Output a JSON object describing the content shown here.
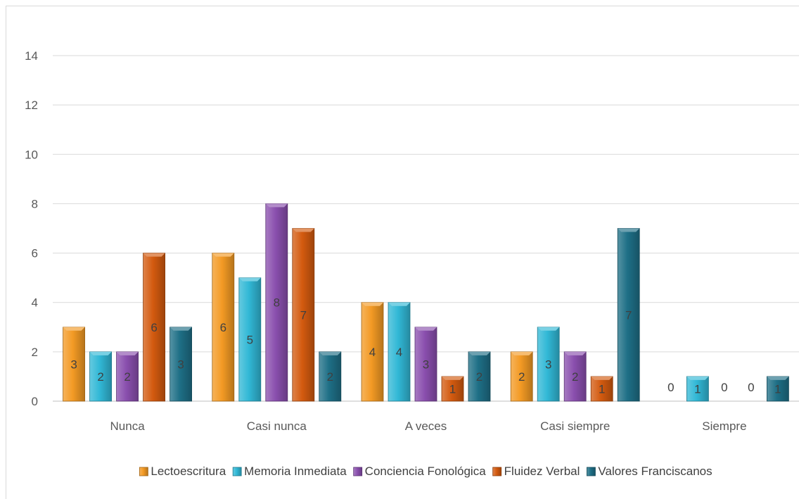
{
  "chart_data": {
    "type": "bar",
    "title": "",
    "xlabel": "",
    "ylabel": "",
    "categories": [
      "Nunca",
      "Casi nunca",
      "A veces",
      "Casi siempre",
      "Siempre"
    ],
    "ylim": [
      0,
      14
    ],
    "yticks": [
      0,
      2,
      4,
      6,
      8,
      10,
      12,
      14
    ],
    "grid": true,
    "legend_position": "bottom",
    "data_labels": true,
    "series": [
      {
        "name": "Lectoescritura",
        "color": "#f39a24",
        "values": [
          3,
          6,
          4,
          2,
          0
        ]
      },
      {
        "name": "Memoria Inmediata",
        "color": "#31b8d6",
        "values": [
          2,
          5,
          4,
          3,
          1
        ]
      },
      {
        "name": "Conciencia Fonológica",
        "color": "#8a4fae",
        "values": [
          2,
          8,
          3,
          2,
          0
        ]
      },
      {
        "name": "Fluidez Verbal",
        "color": "#d35a0f",
        "values": [
          6,
          7,
          1,
          1,
          0
        ]
      },
      {
        "name": "Valores Franciscanos",
        "color": "#1e6f86",
        "values": [
          3,
          2,
          2,
          7,
          1
        ]
      }
    ]
  }
}
